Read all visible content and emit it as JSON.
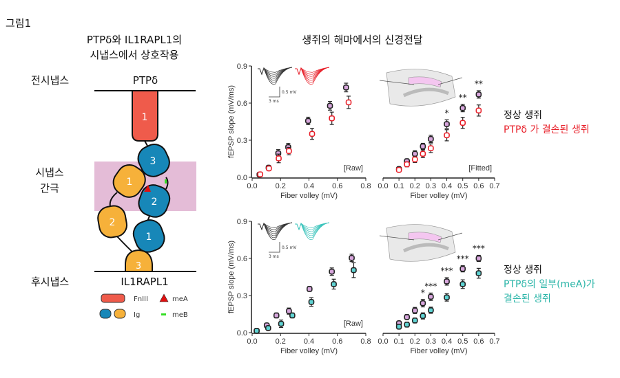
{
  "figure_label": "그림1",
  "left": {
    "title_line1": "PTPδ와 IL1RAPL1의",
    "title_line2": "시냅스에서 상호작용",
    "presynapse_label": "전시냅스",
    "presynapse_protein": "PTPδ",
    "cleft_label_line1": "시냅스",
    "cleft_label_line2": "간극",
    "postsynapse_label": "후시냅스",
    "postsynapse_protein": "IL1RAPL1",
    "domains": {
      "fn": "1",
      "blue3": "3",
      "blue2": "2",
      "blue1": "1",
      "yellow1": "1",
      "yellow2": "2",
      "yellow3": "3"
    },
    "legend": {
      "fn": "FnIII",
      "ig": "Ig",
      "meA": "meA",
      "meB": "meB"
    },
    "colors": {
      "fn": "#ef5b4b",
      "ig_blue": "#1787b8",
      "ig_yellow": "#f6b13a",
      "cleft": "#e4bcd7",
      "meA": "#e01010",
      "meB": "#33dd22"
    }
  },
  "right_title": "생쥐의 해마에서의 신경전달",
  "legend_top": {
    "wt": "정상 생쥐",
    "mut": "PTPδ 가 결손된 생쥐",
    "mut_color": "#e8202a"
  },
  "legend_bottom": {
    "wt": "정상 생쥐",
    "mut_line1": "PTPδ의 일부(meA)가",
    "mut_line2": "결손된 생쥐",
    "mut_color": "#2bb5a8"
  },
  "inset_scale": {
    "voltage": "0.5 mV",
    "time": "3 ms"
  },
  "chart_data": [
    {
      "type": "scatter",
      "tag": "[Raw]",
      "xlabel": "Fiber volley (mV)",
      "ylabel": "fEPSP slope (mV/ms)",
      "xlim": [
        0,
        0.8
      ],
      "ylim": [
        0,
        0.9
      ],
      "xticks": [
        "0.0",
        "0.2",
        "0.4",
        "0.6",
        "0.8"
      ],
      "yticks": [
        "0.0",
        "0.3",
        "0.6",
        "0.9"
      ],
      "series": [
        {
          "color": "#d7a6dc",
          "x": [
            0.052,
            0.116,
            0.184,
            0.254,
            0.394,
            0.548,
            0.661
          ],
          "y": [
            0.022,
            0.078,
            0.194,
            0.244,
            0.456,
            0.578,
            0.726
          ],
          "yerr": [
            0.01,
            0.015,
            0.03,
            0.03,
            0.03,
            0.035,
            0.035
          ]
        },
        {
          "color": "#e8202a",
          "x": [
            0.057,
            0.118,
            0.187,
            0.259,
            0.422,
            0.561,
            0.679
          ],
          "y": [
            0.024,
            0.072,
            0.153,
            0.212,
            0.351,
            0.477,
            0.606
          ],
          "yerr": [
            0.01,
            0.015,
            0.035,
            0.03,
            0.045,
            0.05,
            0.05
          ]
        }
      ]
    },
    {
      "type": "scatter",
      "tag": "[Fitted]",
      "xlabel": "Fiber volley (mV)",
      "xlim": [
        0,
        0.7
      ],
      "ylim": [
        0,
        0.9
      ],
      "xticks": [
        "0.0",
        "0.1",
        "0.2",
        "0.3",
        "0.4",
        "0.5",
        "0.6",
        "0.7"
      ],
      "series": [
        {
          "color": "#d7a6dc",
          "x": [
            0.1,
            0.15,
            0.2,
            0.25,
            0.3,
            0.4,
            0.5,
            0.6
          ],
          "y": [
            0.067,
            0.13,
            0.19,
            0.25,
            0.31,
            0.43,
            0.56,
            0.67
          ],
          "yerr": [
            0.015,
            0.02,
            0.025,
            0.025,
            0.03,
            0.035,
            0.03,
            0.03
          ]
        },
        {
          "color": "#e8202a",
          "x": [
            0.1,
            0.15,
            0.2,
            0.25,
            0.3,
            0.4,
            0.5,
            0.6
          ],
          "y": [
            0.06,
            0.105,
            0.145,
            0.19,
            0.235,
            0.34,
            0.44,
            0.54
          ],
          "yerr": [
            0.015,
            0.02,
            0.025,
            0.03,
            0.035,
            0.045,
            0.045,
            0.045
          ]
        }
      ],
      "annotations": [
        {
          "x": 0.4,
          "text": "*"
        },
        {
          "x": 0.5,
          "text": "**"
        },
        {
          "x": 0.6,
          "text": "**"
        }
      ]
    },
    {
      "type": "scatter",
      "tag": "[Raw]",
      "xlabel": "Fiber volley (mV)",
      "ylabel": "fEPSP slope (mV/ms)",
      "xlim": [
        0,
        0.8
      ],
      "ylim": [
        0,
        0.9
      ],
      "xticks": [
        "0.0",
        "0.2",
        "0.4",
        "0.6",
        "0.8"
      ],
      "yticks": [
        "0.0",
        "0.3",
        "0.6",
        "0.9"
      ],
      "series": [
        {
          "color": "#d7a6dc",
          "x": [
            0.032,
            0.103,
            0.171,
            0.259,
            0.404,
            0.561,
            0.701
          ],
          "y": [
            0.015,
            0.059,
            0.139,
            0.174,
            0.353,
            0.493,
            0.604
          ],
          "yerr": [
            0.01,
            0.015,
            0.02,
            0.025,
            0.02,
            0.03,
            0.03
          ]
        },
        {
          "color": "#5fd3d3",
          "x": [
            0.032,
            0.113,
            0.204,
            0.283,
            0.417,
            0.575,
            0.715
          ],
          "y": [
            0.015,
            0.037,
            0.072,
            0.139,
            0.248,
            0.392,
            0.505
          ],
          "yerr": [
            0.01,
            0.015,
            0.03,
            0.02,
            0.035,
            0.04,
            0.06
          ]
        }
      ]
    },
    {
      "type": "scatter",
      "xlabel": "Fiber volley (mV)",
      "xlim": [
        0,
        0.7
      ],
      "ylim": [
        0,
        0.9
      ],
      "xticks": [
        "0.0",
        "0.1",
        "0.2",
        "0.3",
        "0.4",
        "0.5",
        "0.6",
        "0.7"
      ],
      "series": [
        {
          "color": "#d7a6dc",
          "x": [
            0.1,
            0.15,
            0.2,
            0.25,
            0.3,
            0.4,
            0.5,
            0.6
          ],
          "y": [
            0.076,
            0.126,
            0.179,
            0.238,
            0.29,
            0.414,
            0.516,
            0.6
          ],
          "yerr": [
            0.015,
            0.02,
            0.025,
            0.03,
            0.03,
            0.03,
            0.025,
            0.025
          ]
        },
        {
          "color": "#5fd3d3",
          "x": [
            0.1,
            0.15,
            0.2,
            0.25,
            0.3,
            0.4,
            0.5,
            0.6
          ],
          "y": [
            0.048,
            0.065,
            0.098,
            0.135,
            0.181,
            0.285,
            0.392,
            0.48
          ],
          "yerr": [
            0.015,
            0.02,
            0.02,
            0.025,
            0.025,
            0.03,
            0.035,
            0.04
          ]
        }
      ],
      "annotations": [
        {
          "x": 0.25,
          "text": "*"
        },
        {
          "x": 0.3,
          "text": "***"
        },
        {
          "x": 0.4,
          "text": "***"
        },
        {
          "x": 0.5,
          "text": "***"
        },
        {
          "x": 0.6,
          "text": "***"
        }
      ]
    }
  ]
}
